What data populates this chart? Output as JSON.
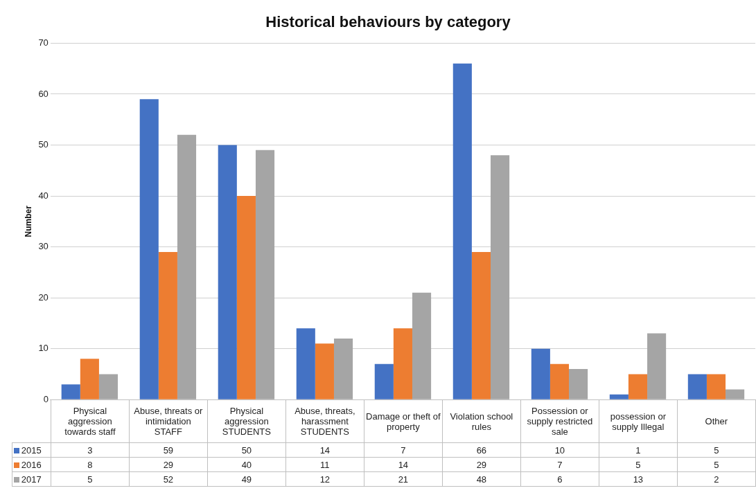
{
  "chart_data": {
    "type": "bar",
    "title": "Historical behaviours by category",
    "ylabel": "Number",
    "categories": [
      "Physical aggression towards staff",
      "Abuse, threats or intimidation STAFF",
      "Physical aggression STUDENTS",
      "Abuse, threats, harassment STUDENTS",
      "Damage or theft of property",
      "Violation school rules",
      "Possession or supply restricted sale",
      "possession or supply Illegal",
      "Other"
    ],
    "series": [
      {
        "name": "2015",
        "color": "#4472c4",
        "values": [
          3,
          59,
          50,
          14,
          7,
          66,
          10,
          1,
          5
        ]
      },
      {
        "name": "2016",
        "color": "#ed7d31",
        "values": [
          8,
          29,
          40,
          11,
          14,
          29,
          7,
          5,
          5
        ]
      },
      {
        "name": "2017",
        "color": "#a5a5a5",
        "values": [
          5,
          52,
          49,
          12,
          21,
          48,
          6,
          13,
          2
        ]
      }
    ],
    "ylim": [
      0,
      70
    ],
    "yticks": [
      0,
      10,
      20,
      30,
      40,
      50,
      60,
      70
    ],
    "grid": "y",
    "legend": "bottom",
    "data_labels": true
  }
}
